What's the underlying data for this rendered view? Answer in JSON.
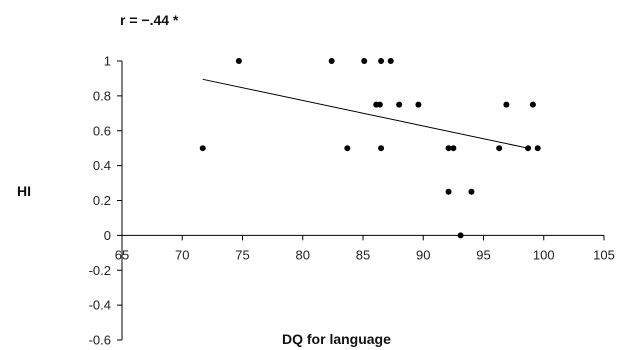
{
  "chart_data": {
    "type": "scatter",
    "title": "r = −.44 *",
    "xlabel": "DQ for language",
    "ylabel": "HI",
    "xlim": [
      65,
      105
    ],
    "ylim": [
      -0.6,
      1
    ],
    "x_ticks": [
      "65",
      "70",
      "75",
      "80",
      "85",
      "90",
      "95",
      "100",
      "105"
    ],
    "y_ticks": [
      "-0.6",
      "-0.4",
      "-0.2",
      "0",
      "0.2",
      "0.4",
      "0.6",
      "0.8",
      "1"
    ],
    "grid": false,
    "legend": "none",
    "series": [
      {
        "points": [
          [
            71.7,
            0.5
          ],
          [
            74.7,
            1.0
          ],
          [
            82.4,
            1.0
          ],
          [
            83.7,
            0.5
          ],
          [
            85.1,
            1.0
          ],
          [
            86.1,
            0.75
          ],
          [
            86.4,
            0.75
          ],
          [
            86.5,
            1.0
          ],
          [
            86.5,
            0.5
          ],
          [
            87.3,
            1.0
          ],
          [
            88.0,
            0.75
          ],
          [
            89.6,
            0.75
          ],
          [
            92.1,
            0.25
          ],
          [
            92.1,
            0.5
          ],
          [
            92.5,
            0.5
          ],
          [
            93.1,
            0.0
          ],
          [
            94.0,
            0.25
          ],
          [
            96.3,
            0.5
          ],
          [
            96.9,
            0.75
          ],
          [
            98.7,
            0.5
          ],
          [
            99.1,
            0.75
          ],
          [
            99.5,
            0.5
          ]
        ]
      }
    ],
    "trendline": {
      "x": [
        71.7,
        98.7
      ],
      "y": [
        0.895,
        0.5
      ]
    },
    "colors": {
      "points": "#000000",
      "line": "#000000",
      "axis": "#000000"
    }
  }
}
